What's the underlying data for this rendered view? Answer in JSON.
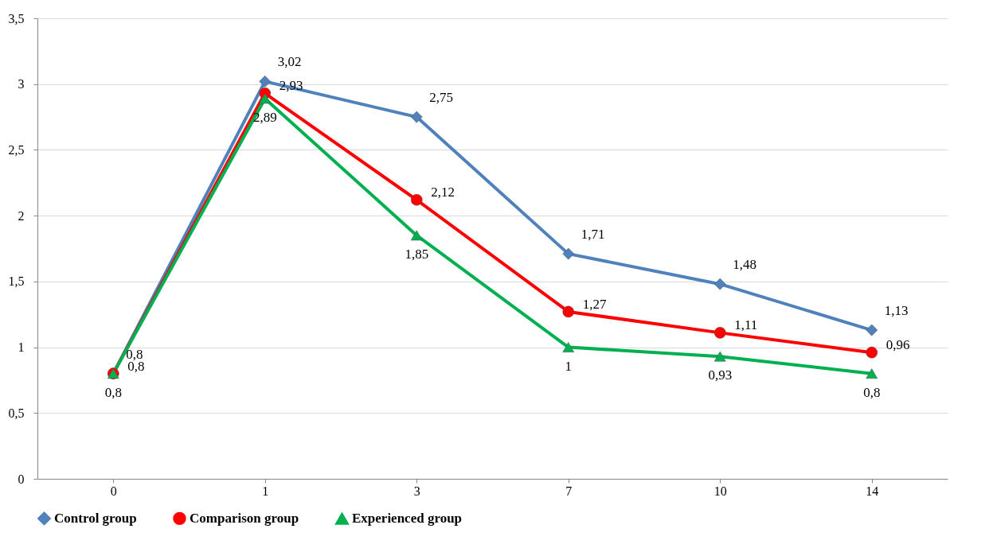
{
  "chart_data": {
    "type": "line",
    "categories": [
      "0",
      "1",
      "3",
      "7",
      "10",
      "14"
    ],
    "series": [
      {
        "name": "Control group",
        "color": "#4f81bd",
        "marker": "diamond",
        "values": [
          0.8,
          3.02,
          2.75,
          1.71,
          1.48,
          1.13
        ],
        "value_labels": [
          "0,8",
          "3,02",
          "2,75",
          "1,71",
          "1,48",
          "1,13"
        ]
      },
      {
        "name": "Comparison group",
        "color": "#ff0000",
        "marker": "circle",
        "values": [
          0.8,
          2.93,
          2.12,
          1.27,
          1.11,
          0.96
        ],
        "value_labels": [
          "0,8",
          "2,93",
          "2,12",
          "1,27",
          "1,11",
          "0,96"
        ]
      },
      {
        "name": "Experienced group",
        "color": "#00b050",
        "marker": "triangle",
        "values": [
          0.8,
          2.89,
          1.85,
          1,
          0.93,
          0.8
        ],
        "value_labels": [
          "0,8",
          "2,89",
          "1,85",
          "1",
          "0,93",
          "0,8"
        ]
      }
    ],
    "ylim": [
      0,
      3.5
    ],
    "yticks": [
      0,
      {
        "value": 0.5,
        "label": "0,5"
      },
      1,
      {
        "value": 1.5,
        "label": "1,5"
      },
      2,
      {
        "value": 2.5,
        "label": "2,5"
      },
      3,
      {
        "value": 3.5,
        "label": "3,5"
      }
    ],
    "grid": "y",
    "legend": "bottom",
    "line_style": "solid"
  }
}
